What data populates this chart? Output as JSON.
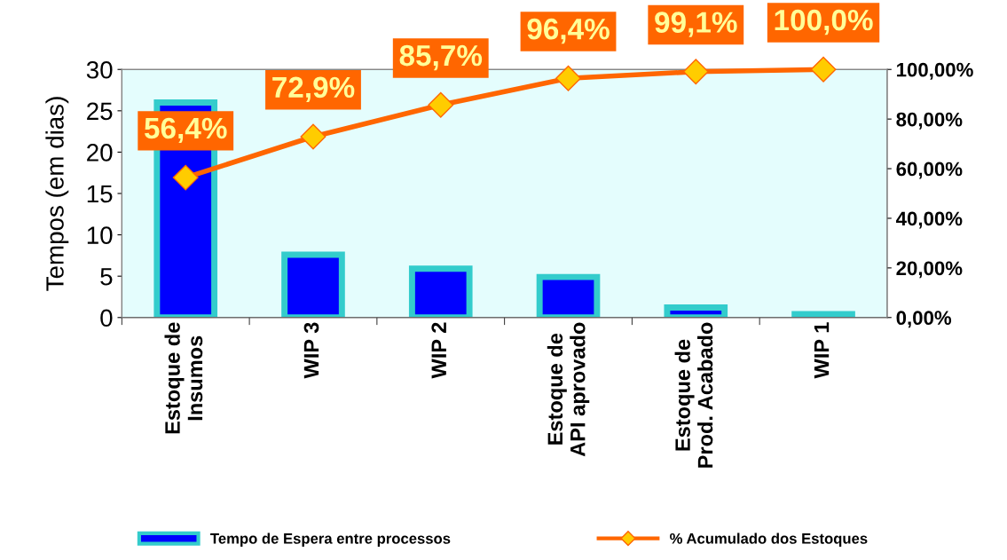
{
  "chart_data": {
    "type": "bar",
    "ylabel": "Tempos (em dias)",
    "categories": [
      "Estoque de\nInsumos",
      "WIP 3",
      "WIP 2",
      "Estoque de\nAPI aprovado",
      "Estoque de\nProd. Acabado",
      "WIP 1"
    ],
    "series": [
      {
        "name": "Tempo de Espera entre processos",
        "color": "#0000ff",
        "values": [
          26,
          7.6,
          5.9,
          4.9,
          1.2,
          0.4
        ]
      },
      {
        "name": "% Acumulado dos Estoques",
        "type": "line",
        "axis": "y2",
        "color": "#ff6600",
        "marker": "diamond",
        "values": [
          56.4,
          72.9,
          85.7,
          96.4,
          99.1,
          100.0
        ],
        "value_labels": [
          "56,4%",
          "72,9%",
          "85,7%",
          "96,4%",
          "99,1%",
          "100,0%"
        ]
      }
    ],
    "ylim": [
      0,
      30
    ],
    "yticks": [
      0,
      5,
      10,
      15,
      20,
      25,
      30
    ],
    "y2lim": [
      0,
      100
    ],
    "y2ticks": [
      {
        "value": 0,
        "label": "0,00%"
      },
      {
        "value": 20,
        "label": "20,00%"
      },
      {
        "value": 40,
        "label": "40,00%"
      },
      {
        "value": 60,
        "label": "60,00%"
      },
      {
        "value": 80,
        "label": "80,00%"
      },
      {
        "value": 100,
        "label": "100,00%"
      }
    ],
    "grid": false,
    "legend": "bottom"
  }
}
